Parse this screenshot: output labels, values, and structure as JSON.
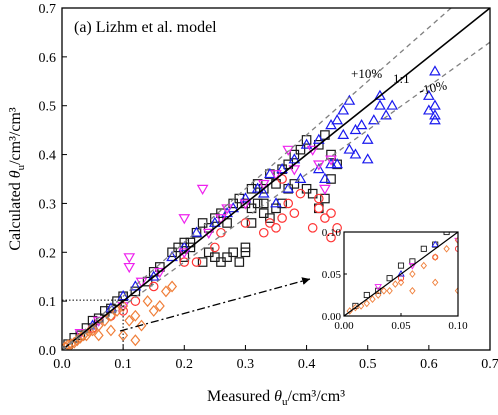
{
  "chart_data": {
    "type": "scatter",
    "title": "(a) Lizhm et al. model",
    "xlabel": "Measured θu/cm3/cm3",
    "ylabel": "Calculated θu/cm3/cm3",
    "xlabel_parts": {
      "pre": "Measured ",
      "sym": "θ",
      "sub": "u",
      "post": "/cm³/cm³"
    },
    "ylabel_parts": {
      "pre": "Calculated ",
      "sym": "θ",
      "sub": "u",
      "post": "/cm³/cm³"
    },
    "xlim": [
      0,
      0.7
    ],
    "ylim": [
      0,
      0.7
    ],
    "xticks": [
      "0.0",
      "0.1",
      "0.2",
      "0.3",
      "0.4",
      "0.5",
      "0.6",
      "0.7"
    ],
    "yticks": [
      "0.0",
      "0.1",
      "0.2",
      "0.3",
      "0.4",
      "0.5",
      "0.6",
      "0.7"
    ],
    "grid": false,
    "reference_lines": [
      {
        "label": "1:1",
        "slope": 1.0,
        "style": "solid",
        "color": "#000000"
      },
      {
        "label": "+10%",
        "slope": 1.1,
        "style": "dashed",
        "color": "#808080"
      },
      {
        "label": "-10%",
        "slope": 0.9,
        "style": "dashed",
        "color": "#808080"
      }
    ],
    "series": [
      {
        "marker": "square",
        "color": "#1a1a1a",
        "points": [
          [
            0.01,
            0.012
          ],
          [
            0.02,
            0.025
          ],
          [
            0.03,
            0.03
          ],
          [
            0.04,
            0.045
          ],
          [
            0.05,
            0.06
          ],
          [
            0.06,
            0.065
          ],
          [
            0.07,
            0.08
          ],
          [
            0.08,
            0.085
          ],
          [
            0.09,
            0.1
          ],
          [
            0.1,
            0.11
          ],
          [
            0.12,
            0.12
          ],
          [
            0.14,
            0.14
          ],
          [
            0.15,
            0.16
          ],
          [
            0.16,
            0.17
          ],
          [
            0.18,
            0.2
          ],
          [
            0.19,
            0.21
          ],
          [
            0.2,
            0.22
          ],
          [
            0.21,
            0.22
          ],
          [
            0.22,
            0.24
          ],
          [
            0.23,
            0.26
          ],
          [
            0.24,
            0.25
          ],
          [
            0.25,
            0.27
          ],
          [
            0.26,
            0.28
          ],
          [
            0.27,
            0.26
          ],
          [
            0.28,
            0.3
          ],
          [
            0.29,
            0.31
          ],
          [
            0.3,
            0.3
          ],
          [
            0.31,
            0.33
          ],
          [
            0.32,
            0.34
          ],
          [
            0.33,
            0.33
          ],
          [
            0.34,
            0.36
          ],
          [
            0.35,
            0.34
          ],
          [
            0.36,
            0.37
          ],
          [
            0.37,
            0.38
          ],
          [
            0.38,
            0.4
          ],
          [
            0.39,
            0.41
          ],
          [
            0.4,
            0.43
          ],
          [
            0.35,
            0.29
          ],
          [
            0.36,
            0.3
          ],
          [
            0.34,
            0.27
          ],
          [
            0.33,
            0.28
          ],
          [
            0.32,
            0.3
          ],
          [
            0.31,
            0.29
          ],
          [
            0.37,
            0.33
          ],
          [
            0.38,
            0.34
          ],
          [
            0.4,
            0.33
          ],
          [
            0.41,
            0.32
          ],
          [
            0.42,
            0.29
          ],
          [
            0.43,
            0.31
          ],
          [
            0.44,
            0.35
          ],
          [
            0.3,
            0.2
          ],
          [
            0.29,
            0.18
          ],
          [
            0.28,
            0.2
          ],
          [
            0.27,
            0.19
          ],
          [
            0.25,
            0.19
          ],
          [
            0.24,
            0.2
          ],
          [
            0.23,
            0.18
          ],
          [
            0.26,
            0.18
          ],
          [
            0.21,
            0.21
          ],
          [
            0.2,
            0.19
          ],
          [
            0.3,
            0.21
          ],
          [
            0.31,
            0.26
          ],
          [
            0.33,
            0.3
          ],
          [
            0.42,
            0.42
          ],
          [
            0.43,
            0.44
          ],
          [
            0.44,
            0.4
          ],
          [
            0.45,
            0.38
          ]
        ]
      },
      {
        "marker": "circle",
        "color": "#ff3333",
        "points": [
          [
            0.05,
            0.045
          ],
          [
            0.1,
            0.08
          ],
          [
            0.15,
            0.13
          ],
          [
            0.2,
            0.18
          ],
          [
            0.25,
            0.21
          ],
          [
            0.3,
            0.26
          ],
          [
            0.33,
            0.24
          ],
          [
            0.34,
            0.26
          ],
          [
            0.35,
            0.25
          ],
          [
            0.36,
            0.27
          ],
          [
            0.37,
            0.3
          ],
          [
            0.38,
            0.28
          ],
          [
            0.42,
            0.29
          ],
          [
            0.43,
            0.27
          ],
          [
            0.44,
            0.28
          ],
          [
            0.45,
            0.25
          ],
          [
            0.44,
            0.23
          ],
          [
            0.41,
            0.25
          ],
          [
            0.42,
            0.31
          ],
          [
            0.39,
            0.32
          ],
          [
            0.36,
            0.35
          ],
          [
            0.26,
            0.24
          ],
          [
            0.22,
            0.18
          ],
          [
            0.12,
            0.1
          ],
          [
            0.08,
            0.07
          ]
        ]
      },
      {
        "marker": "triangle-up",
        "color": "#1a1aee",
        "points": [
          [
            0.05,
            0.05
          ],
          [
            0.08,
            0.085
          ],
          [
            0.1,
            0.11
          ],
          [
            0.12,
            0.13
          ],
          [
            0.15,
            0.15
          ],
          [
            0.18,
            0.19
          ],
          [
            0.2,
            0.21
          ],
          [
            0.22,
            0.24
          ],
          [
            0.25,
            0.26
          ],
          [
            0.27,
            0.28
          ],
          [
            0.28,
            0.29
          ],
          [
            0.3,
            0.31
          ],
          [
            0.32,
            0.33
          ],
          [
            0.34,
            0.36
          ],
          [
            0.36,
            0.37
          ],
          [
            0.38,
            0.39
          ],
          [
            0.4,
            0.42
          ],
          [
            0.42,
            0.43
          ],
          [
            0.44,
            0.46
          ],
          [
            0.45,
            0.47
          ],
          [
            0.46,
            0.49
          ],
          [
            0.47,
            0.51
          ],
          [
            0.48,
            0.45
          ],
          [
            0.49,
            0.46
          ],
          [
            0.5,
            0.43
          ],
          [
            0.51,
            0.47
          ],
          [
            0.52,
            0.5
          ],
          [
            0.52,
            0.52
          ],
          [
            0.53,
            0.48
          ],
          [
            0.54,
            0.5
          ],
          [
            0.46,
            0.44
          ],
          [
            0.47,
            0.41
          ],
          [
            0.45,
            0.38
          ],
          [
            0.5,
            0.39
          ],
          [
            0.48,
            0.4
          ],
          [
            0.44,
            0.38
          ],
          [
            0.43,
            0.35
          ],
          [
            0.42,
            0.37
          ],
          [
            0.39,
            0.35
          ],
          [
            0.37,
            0.33
          ],
          [
            0.35,
            0.3
          ],
          [
            0.33,
            0.32
          ],
          [
            0.6,
            0.52
          ],
          [
            0.61,
            0.5
          ],
          [
            0.61,
            0.48
          ],
          [
            0.61,
            0.47
          ],
          [
            0.6,
            0.49
          ],
          [
            0.61,
            0.57
          ]
        ]
      },
      {
        "marker": "triangle-down",
        "color": "#ee22ee",
        "points": [
          [
            0.03,
            0.035
          ],
          [
            0.06,
            0.06
          ],
          [
            0.1,
            0.09
          ],
          [
            0.13,
            0.14
          ],
          [
            0.16,
            0.16
          ],
          [
            0.2,
            0.2
          ],
          [
            0.24,
            0.24
          ],
          [
            0.27,
            0.29
          ],
          [
            0.3,
            0.3
          ],
          [
            0.33,
            0.34
          ],
          [
            0.35,
            0.36
          ],
          [
            0.38,
            0.37
          ],
          [
            0.41,
            0.41
          ],
          [
            0.42,
            0.38
          ],
          [
            0.43,
            0.33
          ],
          [
            0.44,
            0.39
          ],
          [
            0.2,
            0.27
          ],
          [
            0.23,
            0.33
          ],
          [
            0.37,
            0.41
          ],
          [
            0.11,
            0.19
          ],
          [
            0.11,
            0.17
          ],
          [
            0.26,
            0.27
          ]
        ]
      },
      {
        "marker": "diamond",
        "color": "#f07f3a",
        "points": [
          [
            0.01,
            0.01
          ],
          [
            0.02,
            0.015
          ],
          [
            0.03,
            0.025
          ],
          [
            0.04,
            0.03
          ],
          [
            0.05,
            0.04
          ],
          [
            0.06,
            0.05
          ],
          [
            0.07,
            0.06
          ],
          [
            0.08,
            0.07
          ],
          [
            0.09,
            0.08
          ],
          [
            0.1,
            0.09
          ],
          [
            0.11,
            0.06
          ],
          [
            0.12,
            0.07
          ],
          [
            0.13,
            0.05
          ],
          [
            0.14,
            0.1
          ],
          [
            0.15,
            0.08
          ],
          [
            0.16,
            0.09
          ],
          [
            0.17,
            0.12
          ],
          [
            0.18,
            0.13
          ],
          [
            0.1,
            0.03
          ],
          [
            0.12,
            0.02
          ],
          [
            0.08,
            0.04
          ],
          [
            0.06,
            0.03
          ],
          [
            0.005,
            0.006
          ],
          [
            0.015,
            0.012
          ],
          [
            0.025,
            0.02
          ],
          [
            0.035,
            0.03
          ],
          [
            0.045,
            0.038
          ]
        ]
      }
    ],
    "annotations": {
      "plus10": "+10%",
      "one_to_one": "1:1",
      "minus10": "-10%"
    },
    "inset": {
      "xlim": [
        0,
        0.1
      ],
      "ylim": [
        0,
        0.1
      ],
      "xticks": [
        "0.00",
        "0.05",
        "0.10"
      ],
      "yticks": [
        "0.00",
        "0.05",
        "0.10"
      ],
      "zoom_region": {
        "xlim": [
          0,
          0.1
        ],
        "ylim": [
          0,
          0.1
        ]
      }
    }
  }
}
